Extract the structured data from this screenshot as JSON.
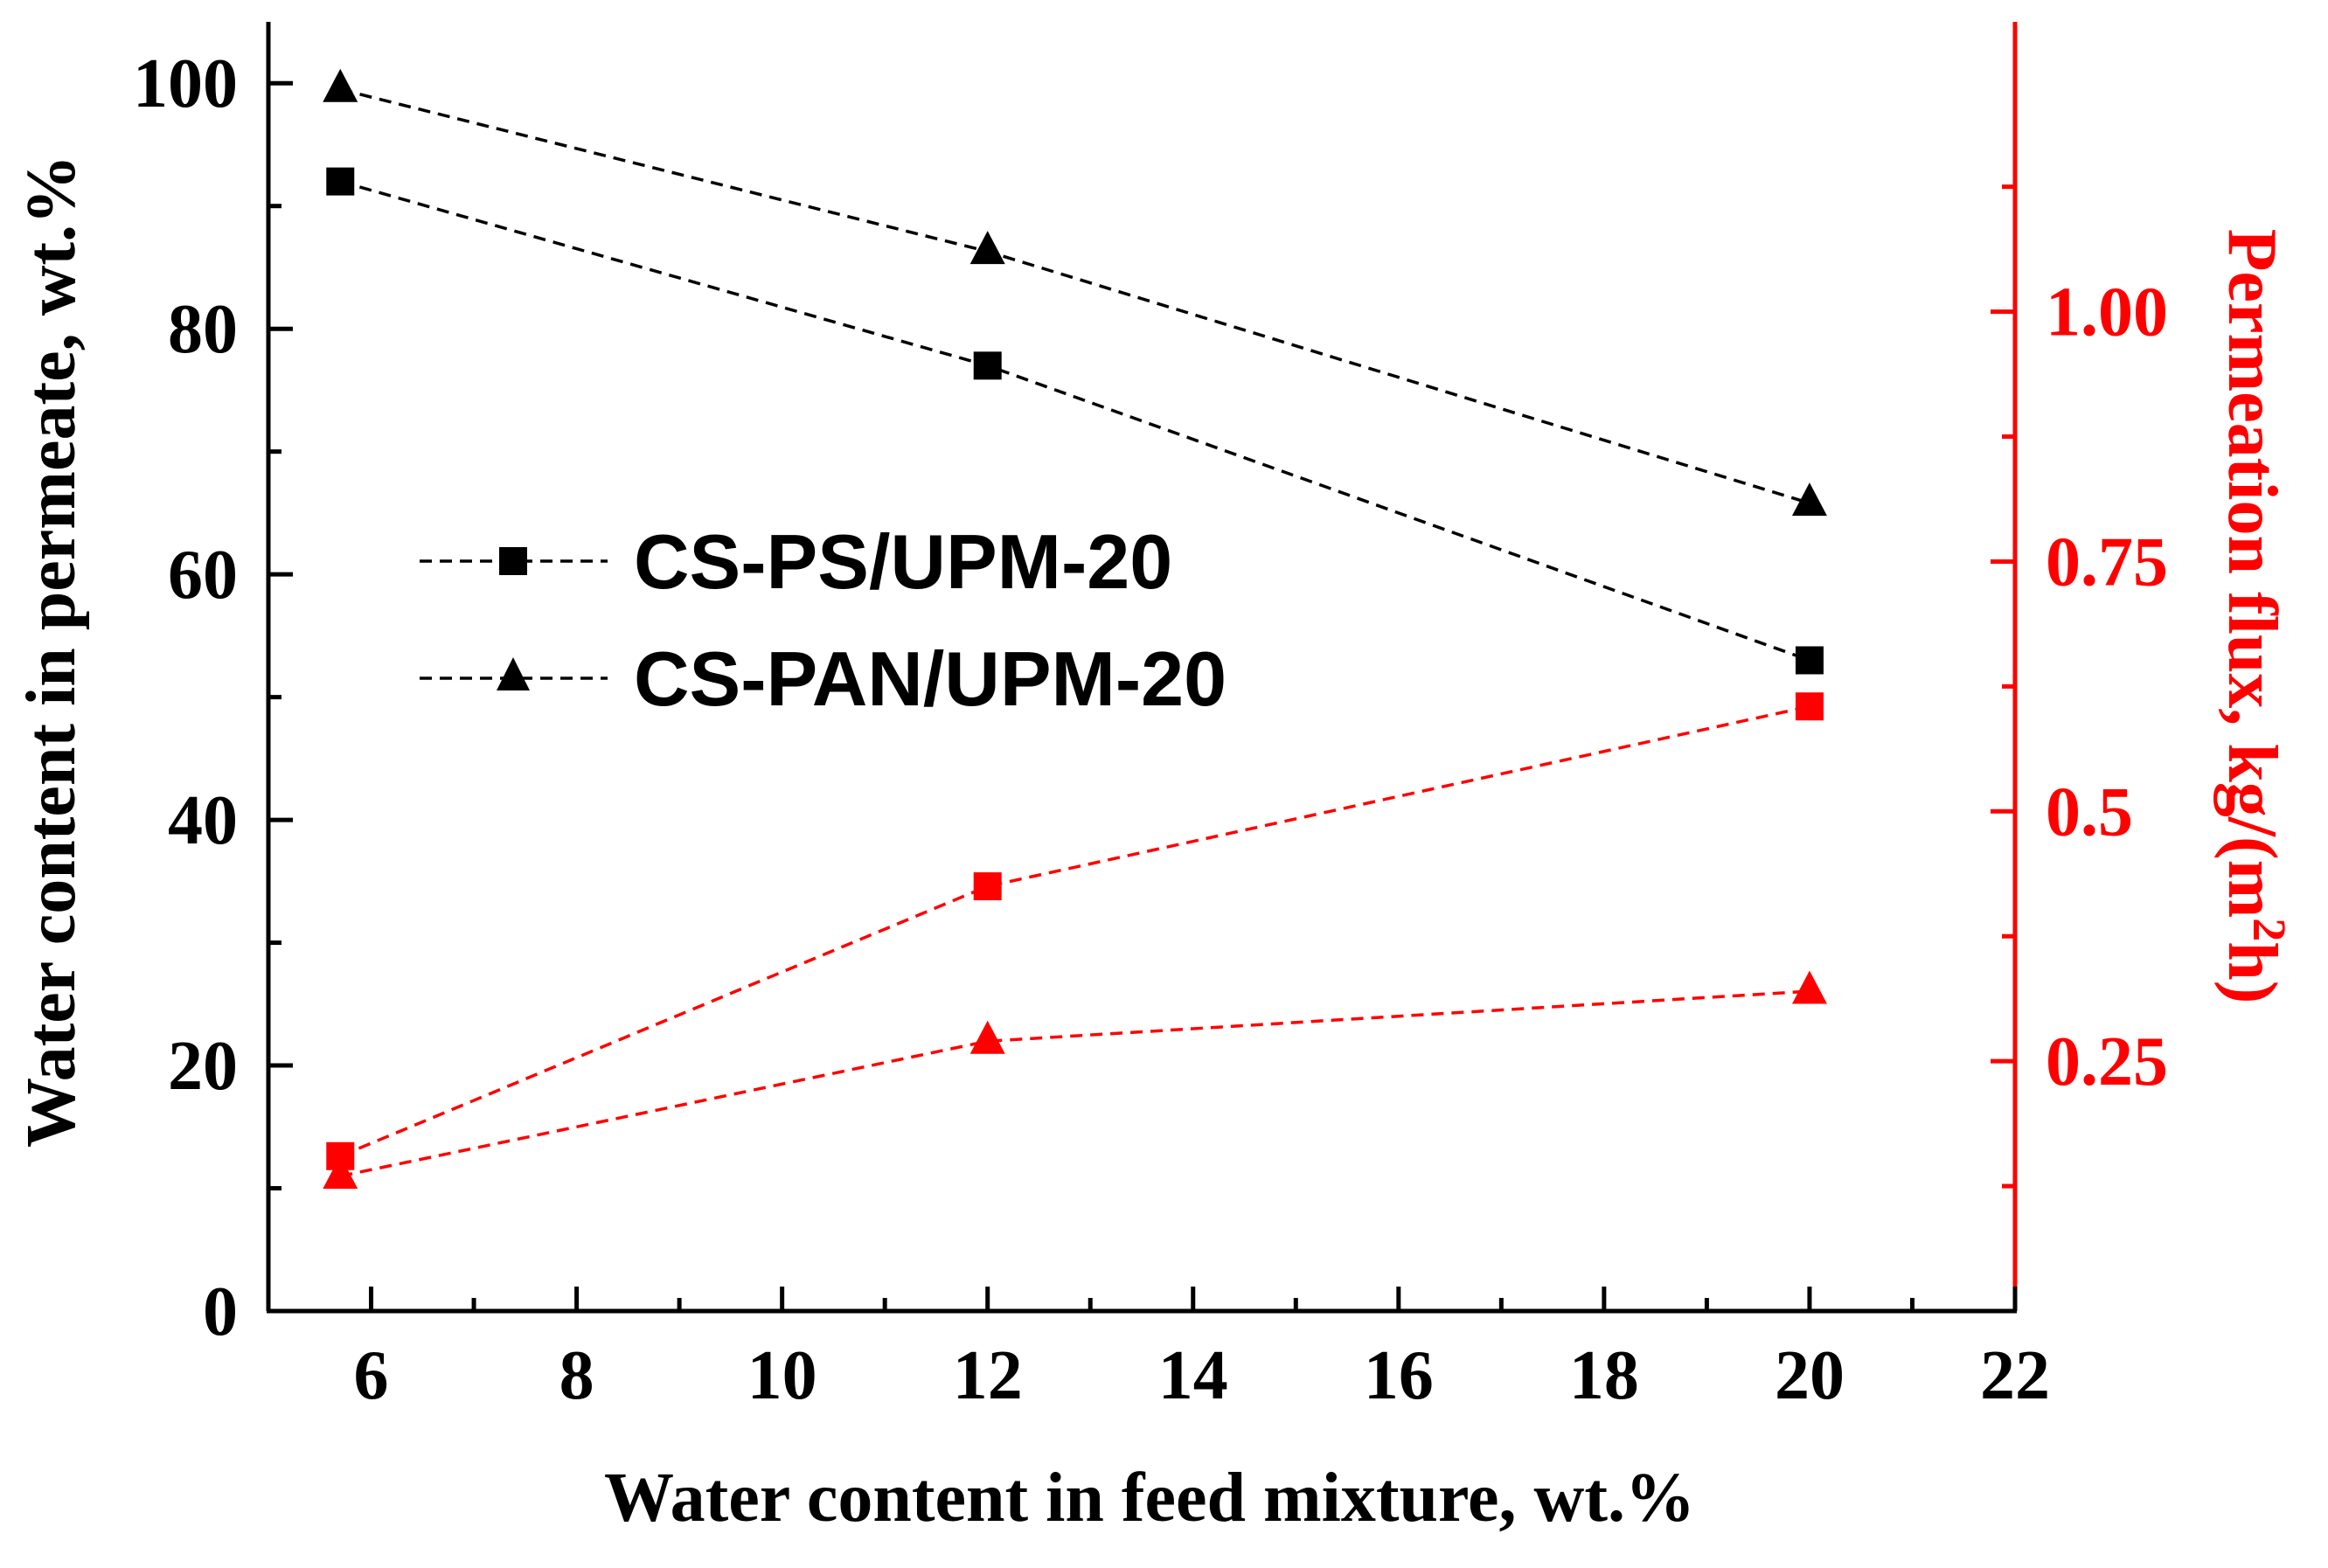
{
  "chart_data": {
    "type": "line",
    "xlabel": "Water content in feed mixture, wt.%",
    "ylabel_left": "Water content in permeate, wt.%",
    "ylabel_right_main": "Permeation flux, kg/(m",
    "ylabel_right_sup": "2",
    "ylabel_right_tail": "h)",
    "xlim": [
      5,
      22
    ],
    "ylim_left": [
      0,
      105
    ],
    "ylim_right": [
      0,
      1.29
    ],
    "x_ticks": [
      6,
      8,
      10,
      12,
      14,
      16,
      18,
      20,
      22
    ],
    "y_left_ticks": [
      0,
      20,
      40,
      60,
      80,
      100
    ],
    "y_right_ticks": [
      0.25,
      0.5,
      0.75,
      1.0
    ],
    "y_right_tick_labels": [
      "0.25",
      "0.5",
      "0.75",
      "1.00"
    ],
    "legend": [
      "CS-PS/UPM-20",
      "CS-PAN/UPM-20"
    ],
    "colors": {
      "left_axis": "#000000",
      "right_axis": "#ff0000"
    },
    "series": [
      {
        "name": "CS-PS/UPM-20",
        "axis": "left",
        "marker": "square",
        "color": "#000000",
        "x": [
          5.7,
          12,
          20
        ],
        "y": [
          92,
          77,
          53
        ]
      },
      {
        "name": "CS-PAN/UPM-20",
        "axis": "left",
        "marker": "triangle",
        "color": "#000000",
        "x": [
          5.7,
          12,
          20
        ],
        "y": [
          99.5,
          86.3,
          65.8
        ]
      },
      {
        "name": "CS-PS/UPM-20 flux",
        "axis": "right",
        "marker": "square",
        "color": "#ff0000",
        "x": [
          5.7,
          12,
          20
        ],
        "y": [
          0.155,
          0.425,
          0.605
        ]
      },
      {
        "name": "CS-PAN/UPM-20 flux",
        "axis": "right",
        "marker": "triangle",
        "color": "#ff0000",
        "x": [
          5.7,
          12,
          20
        ],
        "y": [
          0.135,
          0.27,
          0.32
        ]
      }
    ]
  }
}
